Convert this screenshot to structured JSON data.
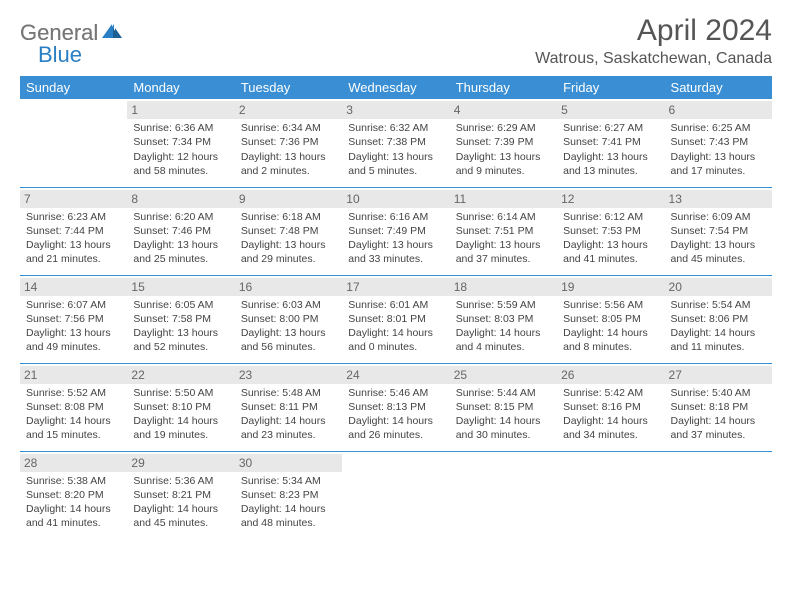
{
  "logo": {
    "gray": "General",
    "blue": "Blue"
  },
  "title": "April 2024",
  "location": "Watrous, Saskatchewan, Canada",
  "colors": {
    "header_bg": "#3a8fd4",
    "header_text": "#ffffff",
    "daynum_bg": "#e8e8e8",
    "border": "#3a8fd4",
    "logo_gray": "#777777",
    "logo_blue": "#2a7fc4"
  },
  "columns": [
    "Sunday",
    "Monday",
    "Tuesday",
    "Wednesday",
    "Thursday",
    "Friday",
    "Saturday"
  ],
  "weeks": [
    [
      {
        "n": "",
        "sr": "",
        "ss": "",
        "dl": ""
      },
      {
        "n": "1",
        "sr": "Sunrise: 6:36 AM",
        "ss": "Sunset: 7:34 PM",
        "dl": "Daylight: 12 hours and 58 minutes."
      },
      {
        "n": "2",
        "sr": "Sunrise: 6:34 AM",
        "ss": "Sunset: 7:36 PM",
        "dl": "Daylight: 13 hours and 2 minutes."
      },
      {
        "n": "3",
        "sr": "Sunrise: 6:32 AM",
        "ss": "Sunset: 7:38 PM",
        "dl": "Daylight: 13 hours and 5 minutes."
      },
      {
        "n": "4",
        "sr": "Sunrise: 6:29 AM",
        "ss": "Sunset: 7:39 PM",
        "dl": "Daylight: 13 hours and 9 minutes."
      },
      {
        "n": "5",
        "sr": "Sunrise: 6:27 AM",
        "ss": "Sunset: 7:41 PM",
        "dl": "Daylight: 13 hours and 13 minutes."
      },
      {
        "n": "6",
        "sr": "Sunrise: 6:25 AM",
        "ss": "Sunset: 7:43 PM",
        "dl": "Daylight: 13 hours and 17 minutes."
      }
    ],
    [
      {
        "n": "7",
        "sr": "Sunrise: 6:23 AM",
        "ss": "Sunset: 7:44 PM",
        "dl": "Daylight: 13 hours and 21 minutes."
      },
      {
        "n": "8",
        "sr": "Sunrise: 6:20 AM",
        "ss": "Sunset: 7:46 PM",
        "dl": "Daylight: 13 hours and 25 minutes."
      },
      {
        "n": "9",
        "sr": "Sunrise: 6:18 AM",
        "ss": "Sunset: 7:48 PM",
        "dl": "Daylight: 13 hours and 29 minutes."
      },
      {
        "n": "10",
        "sr": "Sunrise: 6:16 AM",
        "ss": "Sunset: 7:49 PM",
        "dl": "Daylight: 13 hours and 33 minutes."
      },
      {
        "n": "11",
        "sr": "Sunrise: 6:14 AM",
        "ss": "Sunset: 7:51 PM",
        "dl": "Daylight: 13 hours and 37 minutes."
      },
      {
        "n": "12",
        "sr": "Sunrise: 6:12 AM",
        "ss": "Sunset: 7:53 PM",
        "dl": "Daylight: 13 hours and 41 minutes."
      },
      {
        "n": "13",
        "sr": "Sunrise: 6:09 AM",
        "ss": "Sunset: 7:54 PM",
        "dl": "Daylight: 13 hours and 45 minutes."
      }
    ],
    [
      {
        "n": "14",
        "sr": "Sunrise: 6:07 AM",
        "ss": "Sunset: 7:56 PM",
        "dl": "Daylight: 13 hours and 49 minutes."
      },
      {
        "n": "15",
        "sr": "Sunrise: 6:05 AM",
        "ss": "Sunset: 7:58 PM",
        "dl": "Daylight: 13 hours and 52 minutes."
      },
      {
        "n": "16",
        "sr": "Sunrise: 6:03 AM",
        "ss": "Sunset: 8:00 PM",
        "dl": "Daylight: 13 hours and 56 minutes."
      },
      {
        "n": "17",
        "sr": "Sunrise: 6:01 AM",
        "ss": "Sunset: 8:01 PM",
        "dl": "Daylight: 14 hours and 0 minutes."
      },
      {
        "n": "18",
        "sr": "Sunrise: 5:59 AM",
        "ss": "Sunset: 8:03 PM",
        "dl": "Daylight: 14 hours and 4 minutes."
      },
      {
        "n": "19",
        "sr": "Sunrise: 5:56 AM",
        "ss": "Sunset: 8:05 PM",
        "dl": "Daylight: 14 hours and 8 minutes."
      },
      {
        "n": "20",
        "sr": "Sunrise: 5:54 AM",
        "ss": "Sunset: 8:06 PM",
        "dl": "Daylight: 14 hours and 11 minutes."
      }
    ],
    [
      {
        "n": "21",
        "sr": "Sunrise: 5:52 AM",
        "ss": "Sunset: 8:08 PM",
        "dl": "Daylight: 14 hours and 15 minutes."
      },
      {
        "n": "22",
        "sr": "Sunrise: 5:50 AM",
        "ss": "Sunset: 8:10 PM",
        "dl": "Daylight: 14 hours and 19 minutes."
      },
      {
        "n": "23",
        "sr": "Sunrise: 5:48 AM",
        "ss": "Sunset: 8:11 PM",
        "dl": "Daylight: 14 hours and 23 minutes."
      },
      {
        "n": "24",
        "sr": "Sunrise: 5:46 AM",
        "ss": "Sunset: 8:13 PM",
        "dl": "Daylight: 14 hours and 26 minutes."
      },
      {
        "n": "25",
        "sr": "Sunrise: 5:44 AM",
        "ss": "Sunset: 8:15 PM",
        "dl": "Daylight: 14 hours and 30 minutes."
      },
      {
        "n": "26",
        "sr": "Sunrise: 5:42 AM",
        "ss": "Sunset: 8:16 PM",
        "dl": "Daylight: 14 hours and 34 minutes."
      },
      {
        "n": "27",
        "sr": "Sunrise: 5:40 AM",
        "ss": "Sunset: 8:18 PM",
        "dl": "Daylight: 14 hours and 37 minutes."
      }
    ],
    [
      {
        "n": "28",
        "sr": "Sunrise: 5:38 AM",
        "ss": "Sunset: 8:20 PM",
        "dl": "Daylight: 14 hours and 41 minutes."
      },
      {
        "n": "29",
        "sr": "Sunrise: 5:36 AM",
        "ss": "Sunset: 8:21 PM",
        "dl": "Daylight: 14 hours and 45 minutes."
      },
      {
        "n": "30",
        "sr": "Sunrise: 5:34 AM",
        "ss": "Sunset: 8:23 PM",
        "dl": "Daylight: 14 hours and 48 minutes."
      },
      {
        "n": "",
        "sr": "",
        "ss": "",
        "dl": ""
      },
      {
        "n": "",
        "sr": "",
        "ss": "",
        "dl": ""
      },
      {
        "n": "",
        "sr": "",
        "ss": "",
        "dl": ""
      },
      {
        "n": "",
        "sr": "",
        "ss": "",
        "dl": ""
      }
    ]
  ]
}
